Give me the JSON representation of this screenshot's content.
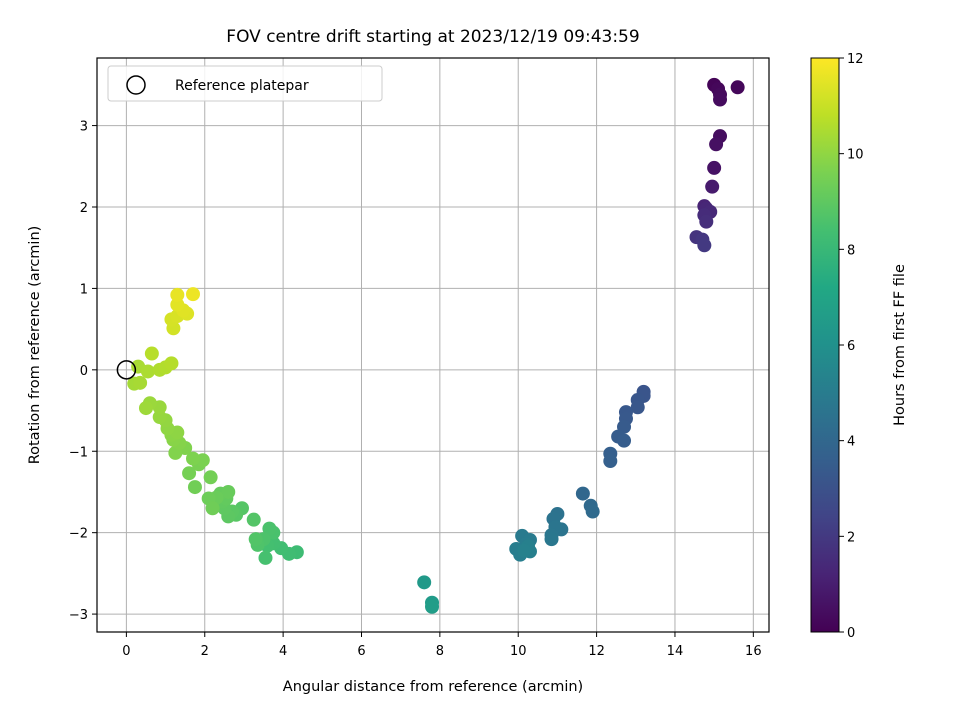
{
  "chart_data": {
    "type": "scatter",
    "title": "FOV centre drift starting at 2023/12/19 09:43:59",
    "xlabel": "Angular distance from reference (arcmin)",
    "ylabel": "Rotation from reference (arcmin)",
    "xlim": [
      -0.75,
      16.4
    ],
    "ylim": [
      -3.22,
      3.83
    ],
    "xticks": [
      0,
      2,
      4,
      6,
      8,
      10,
      12,
      14,
      16
    ],
    "xtick_labels": [
      "0",
      "2",
      "4",
      "6",
      "8",
      "10",
      "12",
      "14",
      "16"
    ],
    "yticks": [
      -3,
      -2,
      -1,
      0,
      1,
      2,
      3
    ],
    "ytick_labels": [
      "−3",
      "−2",
      "−1",
      "0",
      "1",
      "2",
      "3"
    ],
    "grid": true,
    "legend": {
      "position": "top-left",
      "entries": [
        "Reference platepar"
      ]
    },
    "colorbar": {
      "label": "Hours from first FF file",
      "min": 0,
      "max": 12,
      "ticks": [
        0,
        2,
        4,
        6,
        8,
        10,
        12
      ],
      "tick_labels": [
        "0",
        "2",
        "4",
        "6",
        "8",
        "10",
        "12"
      ],
      "colormap": "viridis"
    },
    "reference_point": {
      "x": 0,
      "y": 0
    },
    "points": [
      {
        "x": 15.0,
        "y": 3.5,
        "h": 0.1
      },
      {
        "x": 15.1,
        "y": 3.45,
        "h": 0.2
      },
      {
        "x": 15.6,
        "y": 3.47,
        "h": 0.2
      },
      {
        "x": 15.15,
        "y": 3.38,
        "h": 0.3
      },
      {
        "x": 15.15,
        "y": 3.32,
        "h": 0.35
      },
      {
        "x": 15.15,
        "y": 2.87,
        "h": 0.4
      },
      {
        "x": 15.05,
        "y": 2.77,
        "h": 0.5
      },
      {
        "x": 15.0,
        "y": 2.48,
        "h": 0.6
      },
      {
        "x": 14.95,
        "y": 2.25,
        "h": 0.9
      },
      {
        "x": 14.75,
        "y": 2.01,
        "h": 1.2
      },
      {
        "x": 14.8,
        "y": 1.98,
        "h": 1.3
      },
      {
        "x": 14.9,
        "y": 1.94,
        "h": 1.4
      },
      {
        "x": 14.75,
        "y": 1.9,
        "h": 1.5
      },
      {
        "x": 14.8,
        "y": 1.82,
        "h": 1.6
      },
      {
        "x": 14.55,
        "y": 1.63,
        "h": 1.8
      },
      {
        "x": 14.7,
        "y": 1.6,
        "h": 1.9
      },
      {
        "x": 14.75,
        "y": 1.53,
        "h": 2.0
      },
      {
        "x": 13.2,
        "y": -0.27,
        "h": 3.1
      },
      {
        "x": 13.2,
        "y": -0.32,
        "h": 3.15
      },
      {
        "x": 13.05,
        "y": -0.37,
        "h": 3.2
      },
      {
        "x": 13.05,
        "y": -0.46,
        "h": 3.25
      },
      {
        "x": 12.75,
        "y": -0.52,
        "h": 3.3
      },
      {
        "x": 12.75,
        "y": -0.6,
        "h": 3.35
      },
      {
        "x": 12.7,
        "y": -0.7,
        "h": 3.4
      },
      {
        "x": 12.55,
        "y": -0.82,
        "h": 3.45
      },
      {
        "x": 12.7,
        "y": -0.87,
        "h": 3.5
      },
      {
        "x": 12.35,
        "y": -1.03,
        "h": 3.6
      },
      {
        "x": 12.35,
        "y": -1.12,
        "h": 3.65
      },
      {
        "x": 11.65,
        "y": -1.52,
        "h": 4.0
      },
      {
        "x": 11.85,
        "y": -1.67,
        "h": 4.1
      },
      {
        "x": 11.9,
        "y": -1.74,
        "h": 4.15
      },
      {
        "x": 11.0,
        "y": -1.77,
        "h": 4.5
      },
      {
        "x": 10.9,
        "y": -1.83,
        "h": 4.55
      },
      {
        "x": 11.1,
        "y": -1.96,
        "h": 4.6
      },
      {
        "x": 10.95,
        "y": -1.93,
        "h": 4.65
      },
      {
        "x": 10.85,
        "y": -2.03,
        "h": 4.7
      },
      {
        "x": 10.85,
        "y": -2.08,
        "h": 4.75
      },
      {
        "x": 10.1,
        "y": -2.04,
        "h": 4.9
      },
      {
        "x": 10.3,
        "y": -2.09,
        "h": 4.95
      },
      {
        "x": 10.2,
        "y": -2.14,
        "h": 5.0
      },
      {
        "x": 9.95,
        "y": -2.2,
        "h": 5.05
      },
      {
        "x": 10.05,
        "y": -2.27,
        "h": 5.1
      },
      {
        "x": 10.3,
        "y": -2.23,
        "h": 5.15
      },
      {
        "x": 10.25,
        "y": -2.17,
        "h": 5.2
      },
      {
        "x": 10.15,
        "y": -2.22,
        "h": 5.25
      },
      {
        "x": 7.6,
        "y": -2.61,
        "h": 6.4
      },
      {
        "x": 7.8,
        "y": -2.86,
        "h": 6.5
      },
      {
        "x": 7.8,
        "y": -2.91,
        "h": 6.6
      },
      {
        "x": 4.35,
        "y": -2.24,
        "h": 8.2
      },
      {
        "x": 4.15,
        "y": -2.26,
        "h": 8.25
      },
      {
        "x": 3.95,
        "y": -2.19,
        "h": 8.3
      },
      {
        "x": 3.75,
        "y": -2.13,
        "h": 8.35
      },
      {
        "x": 3.6,
        "y": -2.16,
        "h": 8.4
      },
      {
        "x": 3.55,
        "y": -2.31,
        "h": 8.45
      },
      {
        "x": 3.75,
        "y": -2.0,
        "h": 8.5
      },
      {
        "x": 3.65,
        "y": -1.95,
        "h": 8.55
      },
      {
        "x": 3.5,
        "y": -2.08,
        "h": 8.6
      },
      {
        "x": 3.35,
        "y": -2.15,
        "h": 8.65
      },
      {
        "x": 3.3,
        "y": -2.08,
        "h": 8.7
      },
      {
        "x": 3.25,
        "y": -1.84,
        "h": 8.75
      },
      {
        "x": 2.95,
        "y": -1.7,
        "h": 8.8
      },
      {
        "x": 2.8,
        "y": -1.78,
        "h": 8.85
      },
      {
        "x": 2.7,
        "y": -1.74,
        "h": 8.9
      },
      {
        "x": 2.6,
        "y": -1.8,
        "h": 8.95
      },
      {
        "x": 2.5,
        "y": -1.7,
        "h": 9.0
      },
      {
        "x": 2.45,
        "y": -1.62,
        "h": 9.05
      },
      {
        "x": 2.55,
        "y": -1.58,
        "h": 9.1
      },
      {
        "x": 2.4,
        "y": -1.52,
        "h": 9.15
      },
      {
        "x": 2.6,
        "y": -1.5,
        "h": 9.2
      },
      {
        "x": 2.3,
        "y": -1.57,
        "h": 9.25
      },
      {
        "x": 2.1,
        "y": -1.58,
        "h": 9.3
      },
      {
        "x": 2.2,
        "y": -1.7,
        "h": 9.35
      },
      {
        "x": 1.75,
        "y": -1.44,
        "h": 9.4
      },
      {
        "x": 2.15,
        "y": -1.32,
        "h": 9.45
      },
      {
        "x": 1.6,
        "y": -1.27,
        "h": 9.5
      },
      {
        "x": 1.85,
        "y": -1.16,
        "h": 9.55
      },
      {
        "x": 1.95,
        "y": -1.11,
        "h": 9.6
      },
      {
        "x": 1.7,
        "y": -1.09,
        "h": 9.65
      },
      {
        "x": 1.5,
        "y": -0.96,
        "h": 9.7
      },
      {
        "x": 1.25,
        "y": -1.02,
        "h": 9.75
      },
      {
        "x": 1.35,
        "y": -0.9,
        "h": 9.8
      },
      {
        "x": 1.2,
        "y": -0.86,
        "h": 9.85
      },
      {
        "x": 1.15,
        "y": -0.8,
        "h": 9.9
      },
      {
        "x": 1.3,
        "y": -0.77,
        "h": 9.95
      },
      {
        "x": 1.05,
        "y": -0.72,
        "h": 10.0
      },
      {
        "x": 1.0,
        "y": -0.62,
        "h": 10.05
      },
      {
        "x": 0.85,
        "y": -0.58,
        "h": 10.1
      },
      {
        "x": 0.85,
        "y": -0.46,
        "h": 10.15
      },
      {
        "x": 0.6,
        "y": -0.41,
        "h": 10.2
      },
      {
        "x": 0.5,
        "y": -0.47,
        "h": 10.25
      },
      {
        "x": 0.2,
        "y": -0.17,
        "h": 10.35
      },
      {
        "x": 0.35,
        "y": -0.16,
        "h": 10.4
      },
      {
        "x": 0.3,
        "y": 0.04,
        "h": 10.45
      },
      {
        "x": 0.55,
        "y": -0.02,
        "h": 10.5
      },
      {
        "x": 0.85,
        "y": 0.0,
        "h": 10.55
      },
      {
        "x": 1.0,
        "y": 0.03,
        "h": 10.6
      },
      {
        "x": 1.15,
        "y": 0.08,
        "h": 10.65
      },
      {
        "x": 0.65,
        "y": 0.2,
        "h": 10.7
      },
      {
        "x": 1.2,
        "y": 0.51,
        "h": 11.2
      },
      {
        "x": 1.15,
        "y": 0.62,
        "h": 11.25
      },
      {
        "x": 1.3,
        "y": 0.66,
        "h": 11.3
      },
      {
        "x": 1.55,
        "y": 0.69,
        "h": 11.4
      },
      {
        "x": 1.45,
        "y": 0.73,
        "h": 11.45
      },
      {
        "x": 1.3,
        "y": 0.8,
        "h": 11.5
      },
      {
        "x": 1.3,
        "y": 0.92,
        "h": 11.6
      },
      {
        "x": 1.7,
        "y": 0.93,
        "h": 11.7
      }
    ]
  }
}
